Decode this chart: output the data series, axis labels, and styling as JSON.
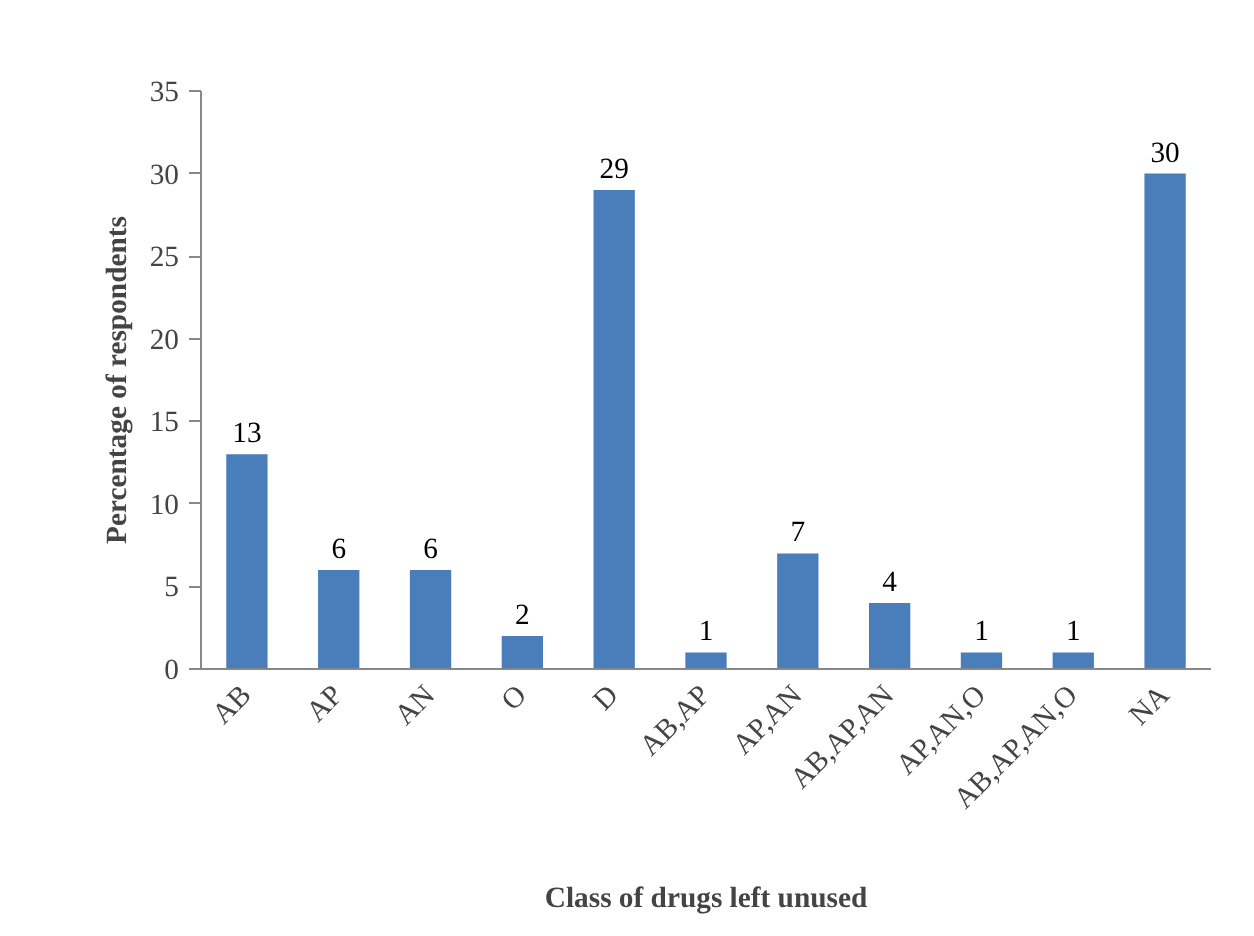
{
  "chart_data": {
    "type": "bar",
    "xlabel": "Class of drugs left unused",
    "ylabel": "Percentage of respondents",
    "categories": [
      "AB",
      "AP",
      "AN",
      "O",
      "D",
      "AB,AP",
      "AP,AN",
      "AB,AP,AN",
      "AP,AN,O",
      "AB,AP,AN,O",
      "NA"
    ],
    "values": [
      13,
      6,
      6,
      2,
      29,
      1,
      7,
      4,
      1,
      1,
      30
    ],
    "color": "#4a7ebb",
    "ylim": [
      0,
      35
    ],
    "yticks": [
      0,
      5,
      10,
      15,
      20,
      25,
      30,
      35
    ],
    "grid": false,
    "data_labels": true
  }
}
